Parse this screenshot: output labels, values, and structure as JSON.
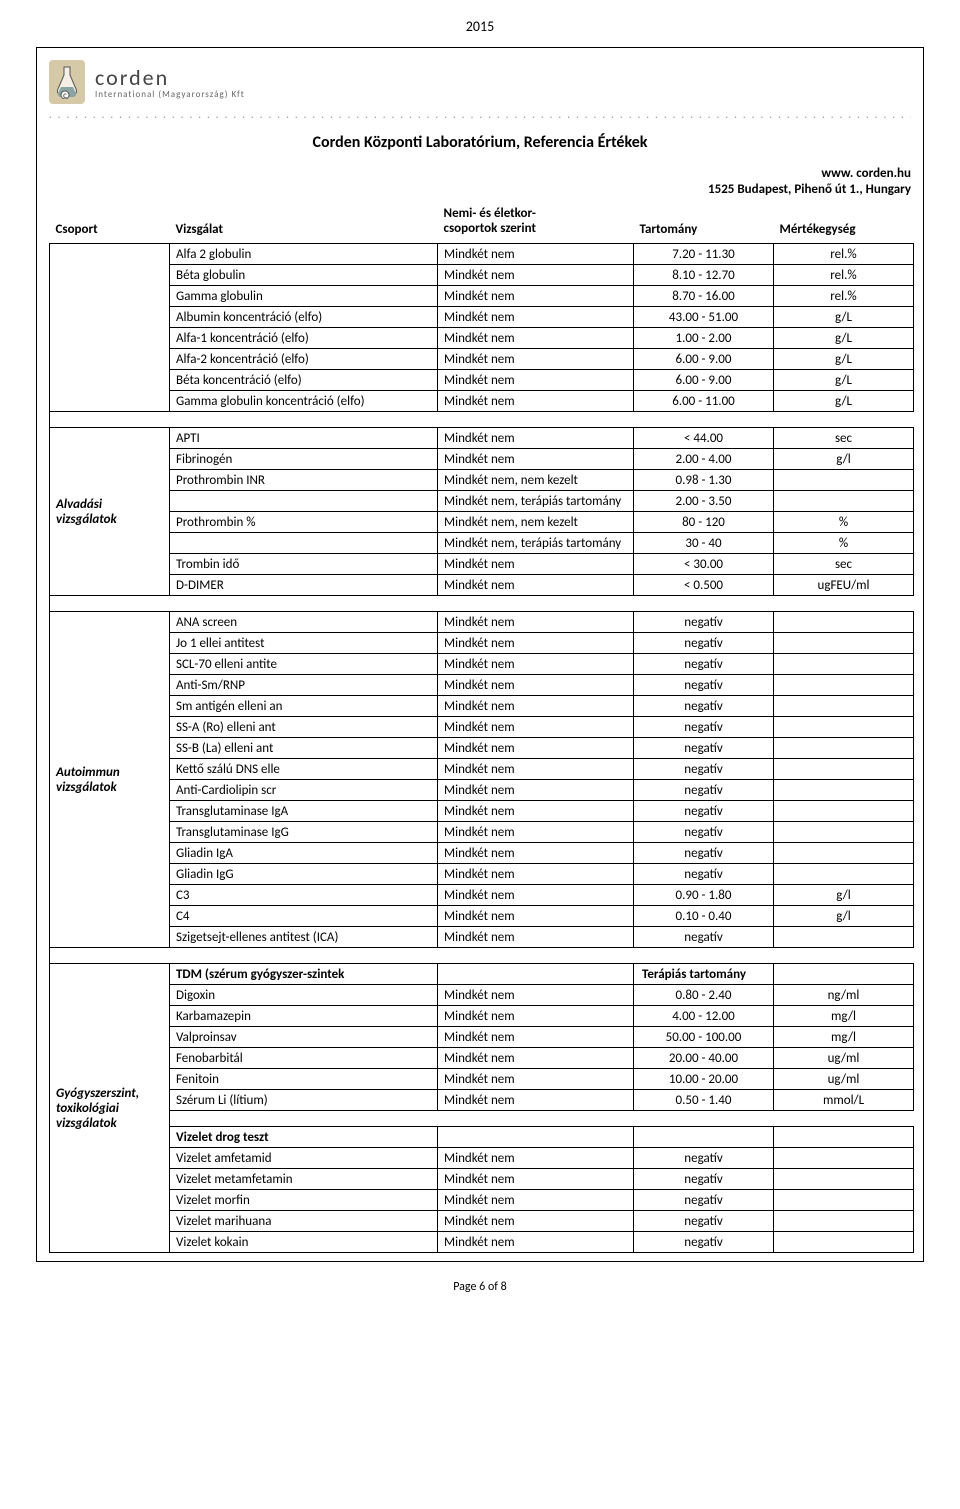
{
  "page": {
    "year": "2015",
    "brand": "corden",
    "brand_sub": "International (Magyarország) Kft",
    "title": "Corden Központi Laboratórium, Referencia Értékek",
    "url": "www. corden.hu",
    "address": "1525 Budapest, Pihenő út 1., Hungary",
    "footer": "Page 6 of 8"
  },
  "columns": {
    "group": "Csoport",
    "test": "Vizsgálat",
    "note_l1": "Nemi- és életkor-",
    "note_l2": "csoportok szerint",
    "range": "Tartomány",
    "unit": "Mértékegység"
  },
  "groups": [
    {
      "label": "",
      "rows": [
        {
          "test": "Alfa 2 globulin",
          "note": "Mindkét nem",
          "range": "7.20 - 11.30",
          "unit": "rel.%"
        },
        {
          "test": "Béta globulin",
          "note": "Mindkét nem",
          "range": "8.10 - 12.70",
          "unit": "rel.%"
        },
        {
          "test": "Gamma globulin",
          "note": "Mindkét nem",
          "range": "8.70 - 16.00",
          "unit": "rel.%"
        },
        {
          "test": "Albumin koncentráció (elfo)",
          "note": "Mindkét nem",
          "range": "43.00 - 51.00",
          "unit": "g/L"
        },
        {
          "test": "Alfa-1 koncentráció (elfo)",
          "note": "Mindkét nem",
          "range": "1.00 - 2.00",
          "unit": "g/L"
        },
        {
          "test": "Alfa-2 koncentráció (elfo)",
          "note": "Mindkét nem",
          "range": "6.00 - 9.00",
          "unit": "g/L"
        },
        {
          "test": "Béta koncentráció (elfo)",
          "note": "Mindkét nem",
          "range": "6.00 - 9.00",
          "unit": "g/L"
        },
        {
          "test": "Gamma globulin koncentráció (elfo)",
          "note": "Mindkét nem",
          "range": "6.00 - 11.00",
          "unit": "g/L"
        }
      ]
    },
    {
      "label": "Alvadási vizsgálatok",
      "rows": [
        {
          "test": "APTI",
          "note": "Mindkét nem",
          "range": "< 44.00",
          "unit": "sec"
        },
        {
          "test": "Fibrinogén",
          "note": "Mindkét nem",
          "range": "2.00 - 4.00",
          "unit": "g/l"
        },
        {
          "test": "Prothrombin  INR",
          "note": "Mindkét nem, nem kezelt",
          "range": "0.98 - 1.30",
          "unit": ""
        },
        {
          "test": "",
          "note": "Mindkét nem, terápiás tartomány",
          "range": "2.00 - 3.50",
          "unit": ""
        },
        {
          "test": "Prothrombin %",
          "note": "Mindkét nem, nem kezelt",
          "range": "80 - 120",
          "unit": "%"
        },
        {
          "test": "",
          "note": "Mindkét nem, terápiás tartomány",
          "range": "30 - 40",
          "unit": "%"
        },
        {
          "test": "Trombin idő",
          "note": "Mindkét nem",
          "range": "< 30.00",
          "unit": "sec"
        },
        {
          "test": "D-DIMER",
          "note": "Mindkét nem",
          "range": "< 0.500",
          "unit": "ugFEU/ml"
        }
      ]
    },
    {
      "label": "Autoimmun vizsgálatok",
      "rows": [
        {
          "test": "ANA screen",
          "note": "Mindkét nem",
          "range": "negatív",
          "unit": ""
        },
        {
          "test": "Jo 1 ellei antitest",
          "note": "Mindkét nem",
          "range": "negatív",
          "unit": ""
        },
        {
          "test": "SCL-70 elleni antite",
          "note": "Mindkét nem",
          "range": "negatív",
          "unit": ""
        },
        {
          "test": "Anti-Sm/RNP",
          "note": "Mindkét nem",
          "range": "negatív",
          "unit": ""
        },
        {
          "test": "Sm antigén elleni an",
          "note": "Mindkét nem",
          "range": "negatív",
          "unit": ""
        },
        {
          "test": "SS-A (Ro) elleni ant",
          "note": "Mindkét nem",
          "range": "negatív",
          "unit": ""
        },
        {
          "test": "SS-B (La) elleni ant",
          "note": "Mindkét nem",
          "range": "negatív",
          "unit": ""
        },
        {
          "test": "Kettő szálú DNS elle",
          "note": "Mindkét nem",
          "range": "negatív",
          "unit": ""
        },
        {
          "test": "Anti-Cardiolipin scr",
          "note": "Mindkét nem",
          "range": "negatív",
          "unit": ""
        },
        {
          "test": "Transglutaminase IgA",
          "note": "Mindkét nem",
          "range": "negatív",
          "unit": ""
        },
        {
          "test": "Transglutaminase IgG",
          "note": "Mindkét nem",
          "range": "negatív",
          "unit": ""
        },
        {
          "test": "Gliadin IgA",
          "note": "Mindkét nem",
          "range": "negatív",
          "unit": ""
        },
        {
          "test": "Gliadin IgG",
          "note": "Mindkét nem",
          "range": "negatív",
          "unit": ""
        },
        {
          "test": "C3",
          "note": "Mindkét nem",
          "range": "0.90 - 1.80",
          "unit": "g/l"
        },
        {
          "test": "C4",
          "note": "Mindkét nem",
          "range": "0.10 - 0.40",
          "unit": "g/l"
        },
        {
          "test": "Szigetsejt-ellenes antitest (ICA)",
          "note": "Mindkét nem",
          "range": "negatív",
          "unit": ""
        }
      ]
    },
    {
      "label": "Gyógyszerszint, toxikológiai vizsgálatok",
      "rows": [
        {
          "test": "TDM (szérum gyógyszer-szintek",
          "bold": true,
          "note": "",
          "range": "Terápiás tartomány",
          "range_bold": true,
          "unit": ""
        },
        {
          "test": "Digoxin",
          "note": "Mindkét nem",
          "range": "0.80 - 2.40",
          "unit": "ng/ml"
        },
        {
          "test": "Karbamazepin",
          "note": "Mindkét nem",
          "range": "4.00 - 12.00",
          "unit": "mg/l"
        },
        {
          "test": "Valproinsav",
          "note": "Mindkét nem",
          "range": "50.00 - 100.00",
          "unit": "mg/l"
        },
        {
          "test": "Fenobarbitál",
          "note": "Mindkét nem",
          "range": "20.00 - 40.00",
          "unit": "ug/ml"
        },
        {
          "test": "Fenitoin",
          "note": "Mindkét nem",
          "range": "10.00 - 20.00",
          "unit": "ug/ml"
        },
        {
          "test": "Szérum Li (lítium)",
          "note": "Mindkét nem",
          "range": "0.50 - 1.40",
          "unit": "mmol/L"
        }
      ],
      "sub": {
        "label": "Vizelet drog teszt",
        "rows": [
          {
            "test": "Vizelet amfetamid",
            "note": "Mindkét nem",
            "range": "negatív",
            "unit": ""
          },
          {
            "test": "Vizelet metamfetamin",
            "note": "Mindkét nem",
            "range": "negatív",
            "unit": ""
          },
          {
            "test": "Vizelet morfin",
            "note": "Mindkét nem",
            "range": "negatív",
            "unit": ""
          },
          {
            "test": "Vizelet marihuana",
            "note": "Mindkét nem",
            "range": "negatív",
            "unit": ""
          },
          {
            "test": "Vizelet kokain",
            "note": "Mindkét nem",
            "range": "negatív",
            "unit": ""
          }
        ]
      }
    }
  ]
}
